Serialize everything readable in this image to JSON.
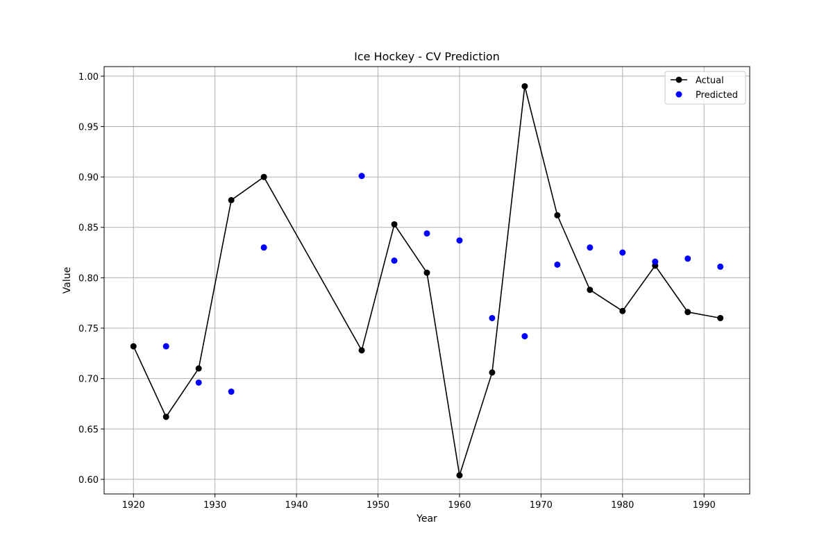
{
  "chart_data": {
    "type": "line",
    "title": "Ice Hockey - CV Prediction",
    "xlabel": "Year",
    "ylabel": "Value",
    "xlim": [
      1916.4,
      1995.6
    ],
    "ylim": [
      0.5855,
      1.0095
    ],
    "xticks": [
      1920,
      1930,
      1940,
      1950,
      1960,
      1970,
      1980,
      1990
    ],
    "yticks": [
      0.6,
      0.65,
      0.7,
      0.75,
      0.8,
      0.85,
      0.9,
      0.95,
      1.0
    ],
    "xtick_labels": [
      "1920",
      "1930",
      "1940",
      "1950",
      "1960",
      "1970",
      "1980",
      "1990"
    ],
    "ytick_labels": [
      "0.60",
      "0.65",
      "0.70",
      "0.75",
      "0.80",
      "0.85",
      "0.90",
      "0.95",
      "1.00"
    ],
    "grid": true,
    "legend_position": "top-right",
    "series": [
      {
        "name": "Actual",
        "kind": "line-marker",
        "color": "#000000",
        "x": [
          1920,
          1924,
          1928,
          1932,
          1936,
          1948,
          1952,
          1956,
          1960,
          1964,
          1968,
          1972,
          1976,
          1980,
          1984,
          1988,
          1992
        ],
        "y": [
          0.732,
          0.662,
          0.71,
          0.877,
          0.9,
          0.728,
          0.853,
          0.805,
          0.604,
          0.706,
          0.99,
          0.862,
          0.788,
          0.767,
          0.812,
          0.766,
          0.76
        ]
      },
      {
        "name": "Predicted",
        "kind": "scatter",
        "color": "#0000ff",
        "x": [
          1924,
          1928,
          1932,
          1936,
          1948,
          1952,
          1956,
          1960,
          1964,
          1968,
          1972,
          1976,
          1980,
          1984,
          1988,
          1992
        ],
        "y": [
          0.732,
          0.696,
          0.687,
          0.83,
          0.901,
          0.817,
          0.844,
          0.837,
          0.76,
          0.742,
          0.813,
          0.83,
          0.825,
          0.816,
          0.819,
          0.811
        ]
      }
    ]
  }
}
